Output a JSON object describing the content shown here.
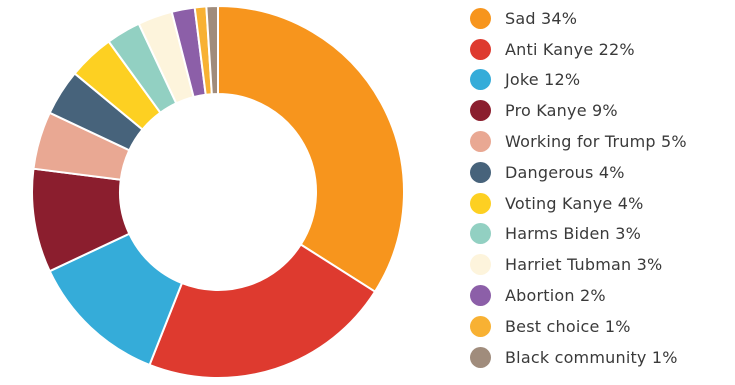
{
  "chart_data": {
    "type": "pie",
    "donut": true,
    "legend_position": "right",
    "slices": [
      {
        "label": "Sad 34%",
        "value": 34,
        "color": "#f7951d"
      },
      {
        "label": "Anti Kanye 22%",
        "value": 22,
        "color": "#de3a2f"
      },
      {
        "label": "Joke 12%",
        "value": 12,
        "color": "#35acd9"
      },
      {
        "label": "Pro Kanye 9%",
        "value": 9,
        "color": "#8b1e2e"
      },
      {
        "label": "Working for Trump 5%",
        "value": 5,
        "color": "#e9a893"
      },
      {
        "label": "Dangerous 4%",
        "value": 4,
        "color": "#47637b"
      },
      {
        "label": "Voting Kanye 4%",
        "value": 4,
        "color": "#fdd022"
      },
      {
        "label": "Harms Biden 3%",
        "value": 3,
        "color": "#92d0c2"
      },
      {
        "label": "Harriet Tubman 3%",
        "value": 3,
        "color": "#fdf4dc"
      },
      {
        "label": "Abortion 2%",
        "value": 2,
        "color": "#8c5fa8"
      },
      {
        "label": "Best choice 1%",
        "value": 1,
        "color": "#f8b133"
      },
      {
        "label": "Black community 1%",
        "value": 1,
        "color": "#a08c7c"
      }
    ]
  }
}
